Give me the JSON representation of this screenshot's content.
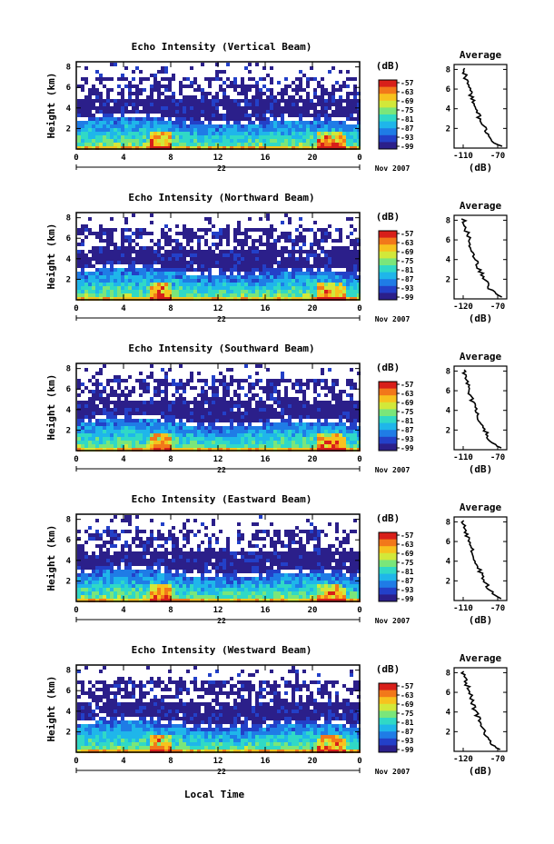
{
  "chart_data": [
    {
      "type": "heatmap",
      "title": "Echo Intensity (Vertical Beam)",
      "ylabel": "Height (km)",
      "yticks": [
        "2",
        "4",
        "6",
        "8"
      ],
      "xticks": [
        "0",
        "4",
        "8",
        "12",
        "16",
        "20",
        "0"
      ],
      "date_label": "22",
      "month_label": "Nov 2007",
      "colorbar": {
        "unit": "(dB)",
        "labels": [
          "-57",
          "-63",
          "-69",
          "-75",
          "-81",
          "-87",
          "-93",
          "-99"
        ]
      },
      "profile": {
        "title": "Average",
        "xticks": [
          "-110",
          "-70"
        ],
        "xlabel": "(dB)",
        "yticks": [
          "2",
          "4",
          "6",
          "8"
        ]
      }
    },
    {
      "type": "heatmap",
      "title": "Echo Intensity (Northward Beam)",
      "ylabel": "Height (km)",
      "yticks": [
        "2",
        "4",
        "6",
        "8"
      ],
      "xticks": [
        "0",
        "4",
        "8",
        "12",
        "16",
        "20",
        "0"
      ],
      "date_label": "22",
      "month_label": "Nov 2007",
      "colorbar": {
        "unit": "(dB)",
        "labels": [
          "-57",
          "-63",
          "-69",
          "-75",
          "-81",
          "-87",
          "-93",
          "-99"
        ]
      },
      "profile": {
        "title": "Average",
        "xticks": [
          "-120",
          "-70"
        ],
        "xlabel": "(dB)",
        "yticks": [
          "2",
          "4",
          "6",
          "8"
        ]
      }
    },
    {
      "type": "heatmap",
      "title": "Echo Intensity (Southward Beam)",
      "ylabel": "Height (km)",
      "yticks": [
        "2",
        "4",
        "6",
        "8"
      ],
      "xticks": [
        "0",
        "4",
        "8",
        "12",
        "16",
        "20",
        "0"
      ],
      "date_label": "22",
      "month_label": "Nov 2007",
      "colorbar": {
        "unit": "(dB)",
        "labels": [
          "-57",
          "-63",
          "-69",
          "-75",
          "-81",
          "-87",
          "-93",
          "-99"
        ]
      },
      "profile": {
        "title": "Average",
        "xticks": [
          "-110",
          "-70"
        ],
        "xlabel": "(dB)",
        "yticks": [
          "2",
          "4",
          "6",
          "8"
        ]
      }
    },
    {
      "type": "heatmap",
      "title": "Echo Intensity (Eastward Beam)",
      "ylabel": "Height (km)",
      "yticks": [
        "2",
        "4",
        "6",
        "8"
      ],
      "xticks": [
        "0",
        "4",
        "8",
        "12",
        "16",
        "20",
        "0"
      ],
      "date_label": "22",
      "month_label": "Nov 2007",
      "colorbar": {
        "unit": "(dB)",
        "labels": [
          "-57",
          "-63",
          "-69",
          "-75",
          "-81",
          "-87",
          "-93",
          "-99"
        ]
      },
      "profile": {
        "title": "Average",
        "xticks": [
          "-110",
          "-70"
        ],
        "xlabel": "(dB)",
        "yticks": [
          "2",
          "4",
          "6",
          "8"
        ]
      }
    },
    {
      "type": "heatmap",
      "title": "Echo Intensity (Westward Beam)",
      "ylabel": "Height (km)",
      "yticks": [
        "2",
        "4",
        "6",
        "8"
      ],
      "xticks": [
        "0",
        "4",
        "8",
        "12",
        "16",
        "20",
        "0"
      ],
      "date_label": "22",
      "month_label": "Nov 2007",
      "colorbar": {
        "unit": "(dB)",
        "labels": [
          "-57",
          "-63",
          "-69",
          "-75",
          "-81",
          "-87",
          "-93",
          "-99"
        ]
      },
      "profile": {
        "title": "Average",
        "xticks": [
          "-120",
          "-70"
        ],
        "xlabel": "(dB)",
        "yticks": [
          "2",
          "4",
          "6",
          "8"
        ]
      }
    }
  ],
  "bottom_xlabel": "Local Time",
  "colors": {
    "colorscale": [
      "#2b1f8a",
      "#2340c8",
      "#1f7ce6",
      "#1fb6ea",
      "#30d9c6",
      "#7ae67a",
      "#d2e83a",
      "#f7c21e",
      "#f2781a",
      "#d81f1a"
    ]
  }
}
